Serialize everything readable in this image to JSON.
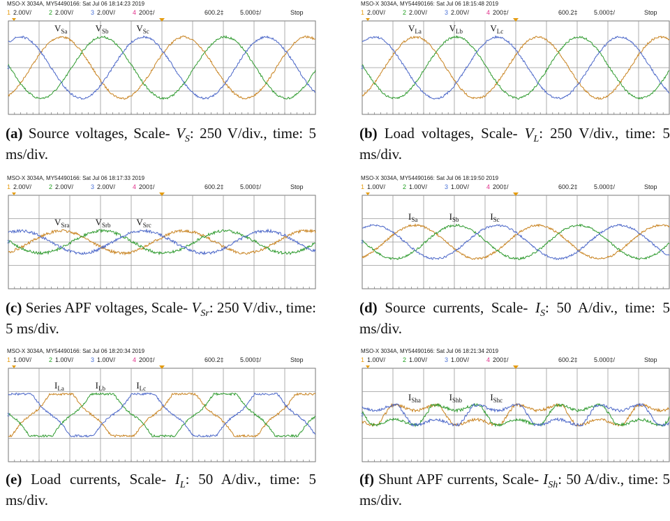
{
  "panels": [
    {
      "header": "MSO-X 3034A, MY54490166: Sat Jul 06 18:14:23 2019",
      "channels": [
        {
          "num": "1",
          "scale": "2.00V/"
        },
        {
          "num": "2",
          "scale": "2.00V/"
        },
        {
          "num": "3",
          "scale": "2.00V/"
        },
        {
          "num": "4",
          "scale": "200‡/"
        }
      ],
      "delay": "600.2‡",
      "timebase": "5.000‡/",
      "status": "Stop",
      "ground_marker": "3",
      "trace_labels": [
        {
          "main": "V",
          "sub": "Sa"
        },
        {
          "main": "V",
          "sub": "Sb"
        },
        {
          "main": "V",
          "sub": "Sc"
        }
      ],
      "caption": {
        "label": "(a)",
        "text": "Source voltages, Scale-",
        "symbol": "V",
        "symbol_sub": "S",
        "rest": ": 250 V/div., time: 5 ms/div."
      }
    },
    {
      "header": "MSO-X 3034A, MY54490166: Sat Jul 06 18:15:48 2019",
      "channels": [
        {
          "num": "1",
          "scale": "2.00V/"
        },
        {
          "num": "2",
          "scale": "2.00V/"
        },
        {
          "num": "3",
          "scale": "2.00V/"
        },
        {
          "num": "4",
          "scale": "200‡/"
        }
      ],
      "delay": "600.2‡",
      "timebase": "5.000‡/",
      "status": "Stop",
      "ground_marker": "3",
      "trace_labels": [
        {
          "main": "V",
          "sub": "La"
        },
        {
          "main": "V",
          "sub": "Lb"
        },
        {
          "main": "V",
          "sub": "Lc"
        }
      ],
      "caption": {
        "label": "(b)",
        "text": "Load voltages, Scale-",
        "symbol": "V",
        "symbol_sub": "L",
        "rest": ": 250 V/div., time: 5 ms/div."
      }
    },
    {
      "header": "MSO-X 3034A, MY54490166: Sat Jul 06 18:17:33 2019",
      "channels": [
        {
          "num": "1",
          "scale": "2.00V/"
        },
        {
          "num": "2",
          "scale": "2.00V/"
        },
        {
          "num": "3",
          "scale": "2.00V/"
        },
        {
          "num": "4",
          "scale": "200‡/"
        }
      ],
      "delay": "600.2‡",
      "timebase": "5.000‡/",
      "status": "Stop",
      "ground_marker": "3",
      "trace_labels": [
        {
          "main": "V",
          "sub": "Sra"
        },
        {
          "main": "V",
          "sub": "Srb"
        },
        {
          "main": "V",
          "sub": "Src"
        }
      ],
      "caption": {
        "label": "(c)",
        "text": "Series APF voltages, Scale-",
        "symbol": "V",
        "symbol_sub": "Sr",
        "rest": ": 250 V/div., time: 5 ms/div."
      }
    },
    {
      "header": "MSO-X 3034A, MY54490166: Sat Jul 06 18:19:50 2019",
      "channels": [
        {
          "num": "1",
          "scale": "1.00V/"
        },
        {
          "num": "2",
          "scale": "1.00V/"
        },
        {
          "num": "3",
          "scale": "1.00V/"
        },
        {
          "num": "4",
          "scale": "200‡/"
        }
      ],
      "delay": "600.2‡",
      "timebase": "5.000‡/",
      "status": "Stop",
      "ground_marker": "3",
      "trace_labels": [
        {
          "main": "I",
          "sub": "Sa"
        },
        {
          "main": "I",
          "sub": "Sb"
        },
        {
          "main": "I",
          "sub": "Sc"
        }
      ],
      "caption": {
        "label": "(d)",
        "text": "Source currents, Scale-",
        "symbol": "I",
        "symbol_sub": "S",
        "rest": ": 50 A/div., time: 5 ms/div."
      }
    },
    {
      "header": "MSO-X 3034A, MY54490166: Sat Jul 06 18:20:34 2019",
      "channels": [
        {
          "num": "1",
          "scale": "1.00V/"
        },
        {
          "num": "2",
          "scale": "1.00V/"
        },
        {
          "num": "3",
          "scale": "1.00V/"
        },
        {
          "num": "4",
          "scale": "200‡/"
        }
      ],
      "delay": "600.2‡",
      "timebase": "5.000‡/",
      "status": "Stop",
      "ground_marker": "3",
      "trace_labels": [
        {
          "main": "I",
          "sub": "La"
        },
        {
          "main": "I",
          "sub": "Lb"
        },
        {
          "main": "I",
          "sub": "Lc"
        }
      ],
      "caption": {
        "label": "(e)",
        "text": "Load currents, Scale-",
        "symbol": "I",
        "symbol_sub": "L",
        "rest": ": 50 A/div., time: 5 ms/div."
      }
    },
    {
      "header": "MSO-X 3034A, MY54490166: Sat Jul 06 18:21:34 2019",
      "channels": [
        {
          "num": "1",
          "scale": "1.00V/"
        },
        {
          "num": "2",
          "scale": "1.00V/"
        },
        {
          "num": "3",
          "scale": "1.00V/"
        },
        {
          "num": "4",
          "scale": "200‡/"
        }
      ],
      "delay": "600.2‡",
      "timebase": "5.000‡/",
      "status": "Stop",
      "ground_marker": "3",
      "trace_labels": [
        {
          "main": "I",
          "sub": "Sha"
        },
        {
          "main": "I",
          "sub": "Shb"
        },
        {
          "main": "I",
          "sub": "Shc"
        }
      ],
      "caption": {
        "label": "(f)",
        "text": "Shunt APF currents, Scale-",
        "symbol": "I",
        "symbol_sub": "Sh",
        "rest": ": 50 A/div., time: 5 ms/div."
      }
    }
  ]
}
